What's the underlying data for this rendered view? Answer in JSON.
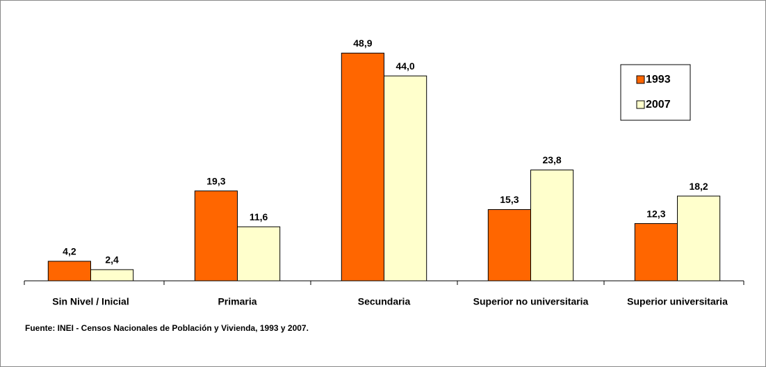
{
  "chart_data": {
    "type": "bar",
    "categories": [
      "Sin Nivel / Inicial",
      "Primaria",
      "Secundaria",
      "Superior no universitaria",
      "Superior universitaria"
    ],
    "series": [
      {
        "name": "1993",
        "color": "#FF6600",
        "values": [
          4.2,
          19.3,
          48.9,
          15.3,
          12.3
        ],
        "value_labels": [
          "4,2",
          "19,3",
          "48,9",
          "15,3",
          "12,3"
        ]
      },
      {
        "name": "2007",
        "color": "#FFFFCC",
        "values": [
          2.4,
          11.6,
          44.0,
          23.8,
          18.2
        ],
        "value_labels": [
          "2,4",
          "11,6",
          "44,0",
          "23,8",
          "18,2"
        ]
      }
    ],
    "ylim": [
      0,
      50
    ],
    "legend": "upper right",
    "source": "Fuente: INEI - Censos Nacionales de Población y Vivienda, 1993 y 2007."
  }
}
